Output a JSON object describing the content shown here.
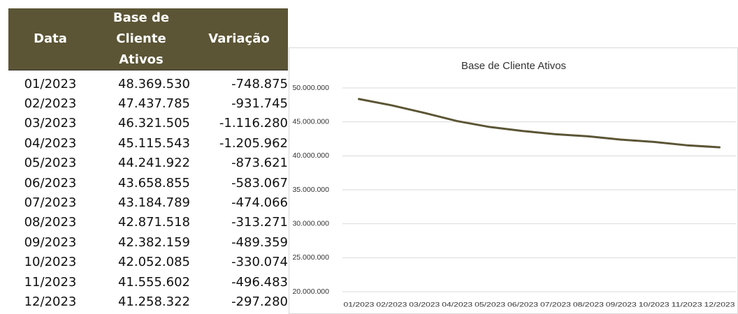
{
  "table": {
    "header": [
      "Data",
      "Base de Cliente Ativos",
      "Variação"
    ],
    "rows": [
      [
        "01/2023",
        "48.369.530",
        "-748.875"
      ],
      [
        "02/2023",
        "47.437.785",
        "-931.745"
      ],
      [
        "03/2023",
        "46.321.505",
        "-1.116.280"
      ],
      [
        "04/2023",
        "45.115.543",
        "-1.205.962"
      ],
      [
        "05/2023",
        "44.241.922",
        "-873.621"
      ],
      [
        "06/2023",
        "43.658.855",
        "-583.067"
      ],
      [
        "07/2023",
        "43.184.789",
        "-474.066"
      ],
      [
        "08/2023",
        "42.871.518",
        "-313.271"
      ],
      [
        "09/2023",
        "42.382.159",
        "-489.359"
      ],
      [
        "10/2023",
        "42.052.085",
        "-330.074"
      ],
      [
        "11/2023",
        "41.555.602",
        "-496.483"
      ],
      [
        "12/2023",
        "41.258.322",
        "-297.280"
      ]
    ]
  },
  "chart_data": {
    "type": "line",
    "title": "Base de Cliente Ativos",
    "categories": [
      "01/2023",
      "02/2023",
      "03/2023",
      "04/2023",
      "05/2023",
      "06/2023",
      "07/2023",
      "08/2023",
      "09/2023",
      "10/2023",
      "11/2023",
      "12/2023"
    ],
    "series": [
      {
        "name": "Base de Cliente Ativos",
        "color": "#5b5535",
        "values": [
          48369530,
          47437785,
          46321505,
          45115543,
          44241922,
          43658855,
          43184789,
          42871518,
          42382159,
          42052085,
          41555602,
          41258322
        ]
      }
    ],
    "ylim": [
      20000000,
      50000000
    ],
    "yticks": [
      {
        "value": 20000000,
        "label": "20.000.000"
      },
      {
        "value": 25000000,
        "label": "25.000.000"
      },
      {
        "value": 30000000,
        "label": "30.000.000"
      },
      {
        "value": 35000000,
        "label": "35.000.000"
      },
      {
        "value": 40000000,
        "label": "40.000.000"
      },
      {
        "value": 45000000,
        "label": "45.000.000"
      },
      {
        "value": 50000000,
        "label": "50.000.000"
      }
    ],
    "grid": true
  }
}
